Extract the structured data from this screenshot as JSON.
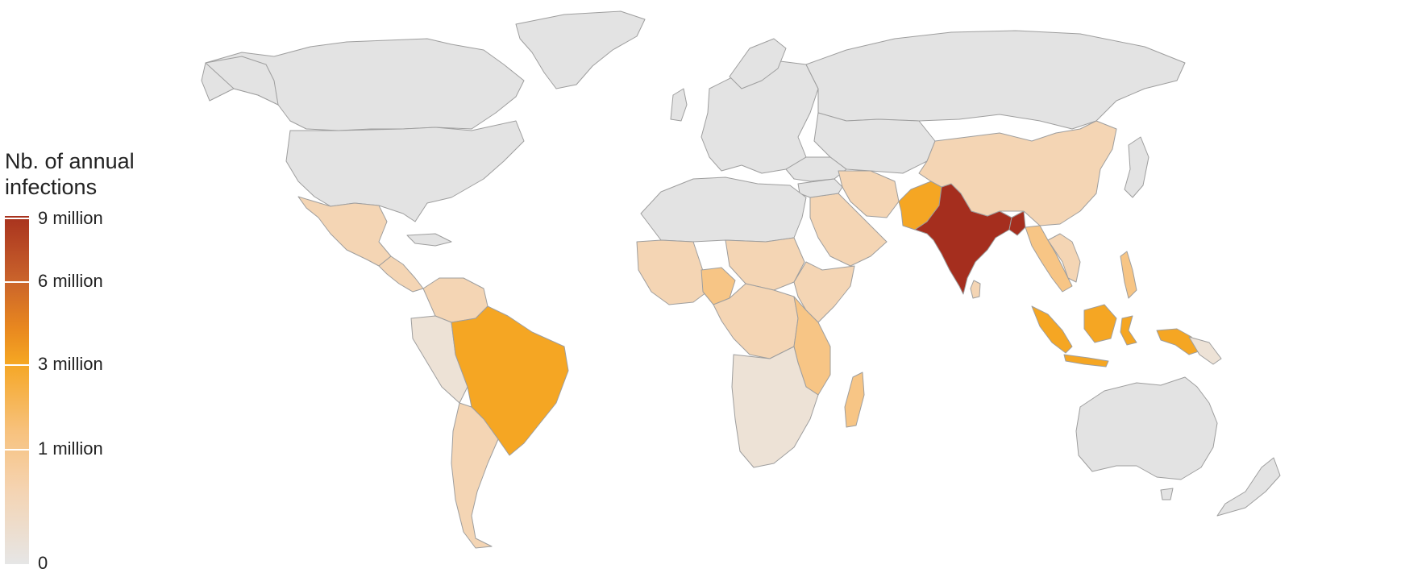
{
  "legend": {
    "title_line1": "Nb. of annual",
    "title_line2": "infections",
    "ticks": [
      "9 million",
      "6 million",
      "3 million",
      "1 million",
      "0"
    ]
  },
  "colors": {
    "no_data": "#e3e3e3",
    "very_low": "#ede2d6",
    "low": "#f4d5b4",
    "medium_low": "#f7c585",
    "medium": "#f5a623",
    "very_high": "#a52e1e",
    "border": "#9e9e9e"
  },
  "map_data": {
    "metric": "Nb. of annual infections",
    "categories": [
      {
        "country": "India",
        "level": "very_high"
      },
      {
        "country": "Bangladesh",
        "level": "very_high"
      },
      {
        "country": "Brazil",
        "level": "medium"
      },
      {
        "country": "Pakistan",
        "level": "medium"
      },
      {
        "country": "Indonesia",
        "level": "medium"
      },
      {
        "country": "Nigeria",
        "level": "medium_low"
      },
      {
        "country": "China",
        "level": "low"
      },
      {
        "country": "Mexico",
        "level": "low"
      },
      {
        "country": "Iran",
        "level": "low"
      },
      {
        "country": "Saudi Arabia",
        "level": "low"
      },
      {
        "country": "Myanmar",
        "level": "medium_low"
      },
      {
        "country": "Sudan",
        "level": "low"
      },
      {
        "country": "Ethiopia",
        "level": "low"
      },
      {
        "country": "DR Congo",
        "level": "low"
      },
      {
        "country": "Tanzania",
        "level": "medium_low"
      },
      {
        "country": "Mozambique",
        "level": "medium_low"
      },
      {
        "country": "Madagascar",
        "level": "medium_low"
      },
      {
        "country": "Argentina",
        "level": "low"
      },
      {
        "country": "Colombia",
        "level": "low"
      },
      {
        "country": "Peru",
        "level": "very_low"
      },
      {
        "country": "Australia",
        "level": "none"
      },
      {
        "country": "Russia",
        "level": "none"
      },
      {
        "country": "United States",
        "level": "none"
      },
      {
        "country": "Canada",
        "level": "none"
      }
    ]
  }
}
